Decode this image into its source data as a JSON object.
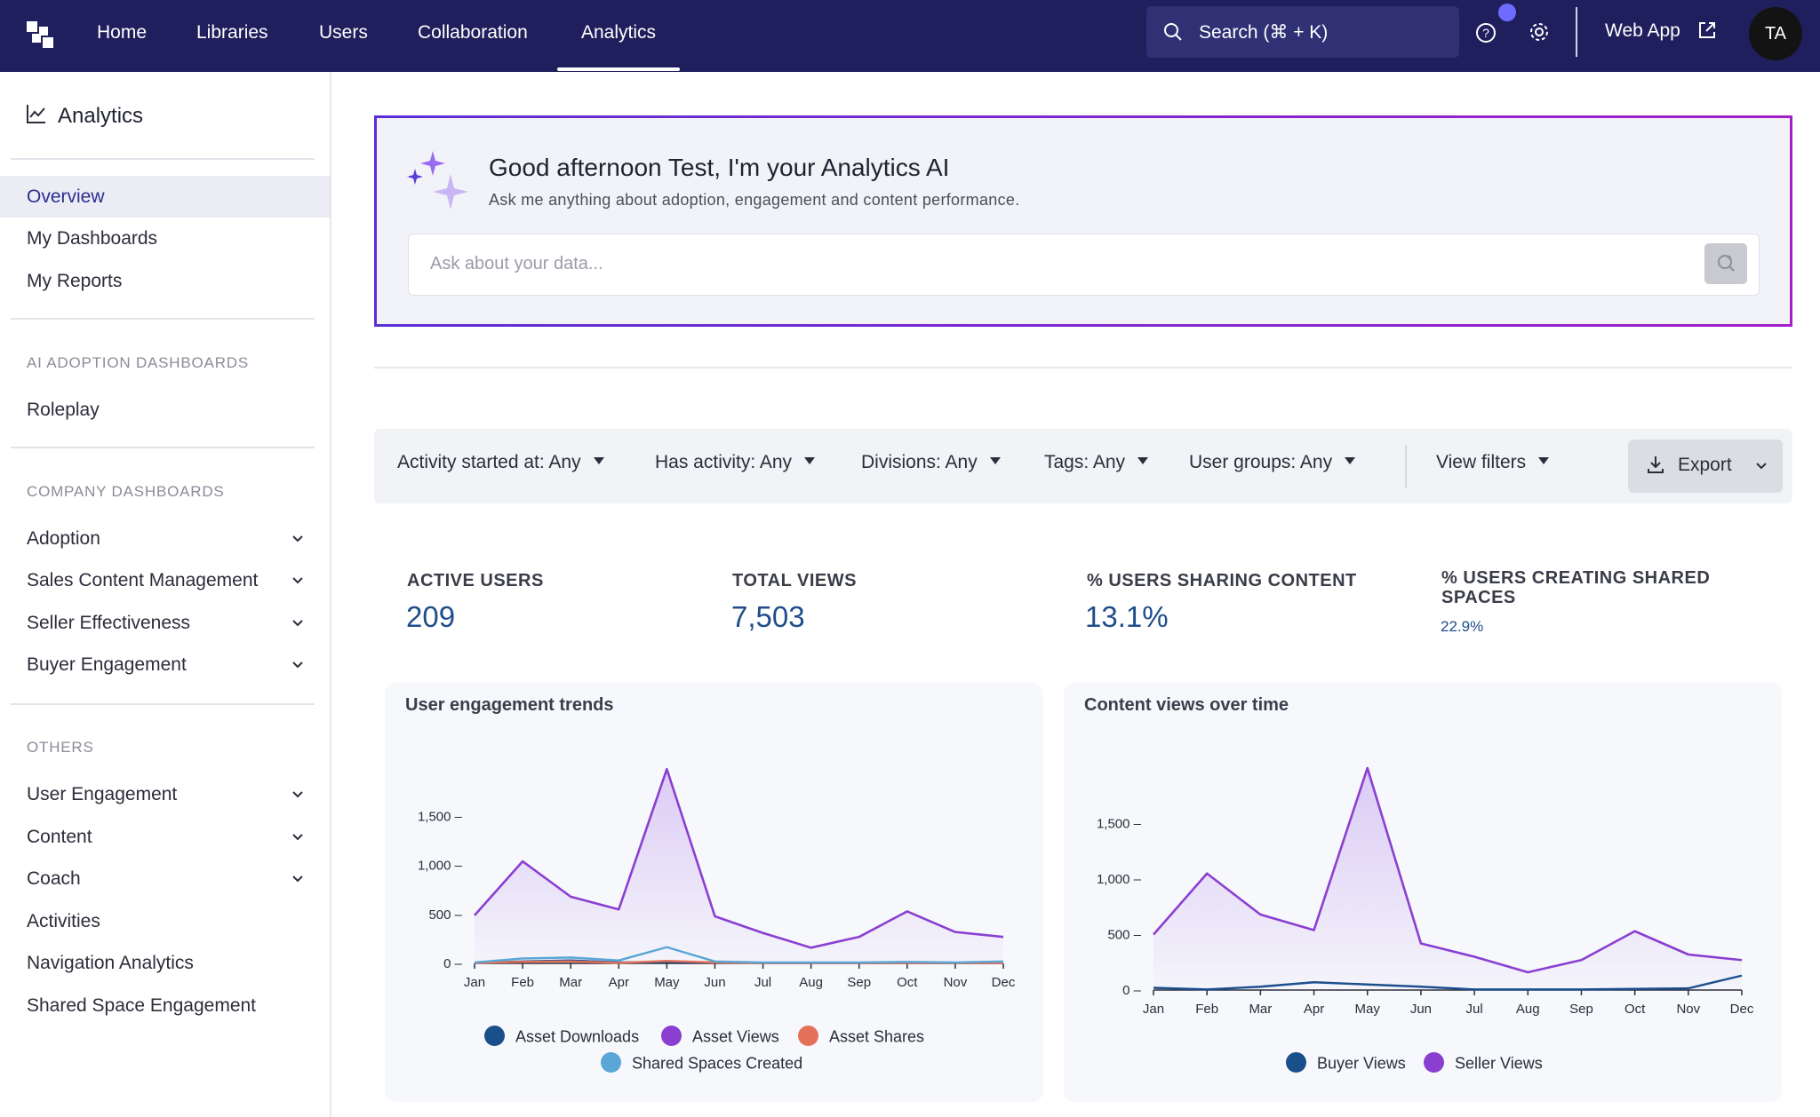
{
  "topnav": {
    "items": [
      "Home",
      "Libraries",
      "Users",
      "Collaboration",
      "Analytics"
    ],
    "active": "Analytics",
    "search_label": "Search (⌘ + K)",
    "web_app_label": "Web App",
    "avatar_initials": "TA"
  },
  "sidebar": {
    "title": "Analytics",
    "main_items": [
      "Overview",
      "My Dashboards",
      "My Reports"
    ],
    "active": "Overview",
    "sections": [
      {
        "heading": "AI ADOPTION DASHBOARDS",
        "items": [
          {
            "label": "Roleplay",
            "expandable": false
          }
        ]
      },
      {
        "heading": "COMPANY DASHBOARDS",
        "items": [
          {
            "label": "Adoption",
            "expandable": true
          },
          {
            "label": "Sales Content Management",
            "expandable": true
          },
          {
            "label": "Seller Effectiveness",
            "expandable": true
          },
          {
            "label": "Buyer Engagement",
            "expandable": true
          }
        ]
      },
      {
        "heading": "OTHERS",
        "items": [
          {
            "label": "User Engagement",
            "expandable": true
          },
          {
            "label": "Content",
            "expandable": true
          },
          {
            "label": "Coach",
            "expandable": true
          },
          {
            "label": "Activities",
            "expandable": false
          },
          {
            "label": "Navigation Analytics",
            "expandable": false
          },
          {
            "label": "Shared Space Engagement",
            "expandable": false
          }
        ]
      }
    ]
  },
  "ai_assistant": {
    "title": "Good afternoon Test, I'm your Analytics AI",
    "subtitle": "Ask me anything about adoption, engagement and content performance.",
    "input_placeholder": "Ask about your data..."
  },
  "filters": {
    "items": [
      "Activity started at: Any",
      "Has activity: Any",
      "Divisions: Any",
      "Tags: Any",
      "User groups: Any"
    ],
    "view_filters_label": "View filters",
    "export_label": "Export"
  },
  "kpis": [
    {
      "label": "ACTIVE USERS",
      "value": "209"
    },
    {
      "label": "TOTAL VIEWS",
      "value": "7,503"
    },
    {
      "label": "% USERS SHARING CONTENT",
      "value": "13.1%"
    },
    {
      "label": "% USERS CREATING SHARED SPACES",
      "value": "22.9%"
    }
  ],
  "colors": {
    "nav_bg": "#1e1f5c",
    "accent": "#2a2f8f",
    "purple": "#8a3fd1",
    "navy": "#1b4f8c",
    "orange": "#e4715a",
    "light_blue": "#5aa6d6"
  },
  "chart_data": [
    {
      "type": "area",
      "title": "User engagement trends",
      "x": [
        "Jan",
        "Feb",
        "Mar",
        "Apr",
        "May",
        "Jun",
        "Jul",
        "Aug",
        "Sep",
        "Oct",
        "Nov",
        "Dec"
      ],
      "yticks": [
        "0",
        "500",
        "1,000",
        "1,500"
      ],
      "ylim": [
        0,
        2000
      ],
      "series": [
        {
          "name": "Asset Downloads",
          "color": "#1b4f8c",
          "values": [
            5,
            20,
            30,
            10,
            15,
            10,
            5,
            5,
            5,
            5,
            5,
            5
          ]
        },
        {
          "name": "Asset Views",
          "color": "#8a3fd1",
          "values": [
            490,
            1040,
            680,
            550,
            1980,
            480,
            310,
            160,
            270,
            530,
            320,
            270
          ]
        },
        {
          "name": "Asset Shares",
          "color": "#e4715a",
          "values": [
            5,
            15,
            20,
            5,
            25,
            10,
            5,
            5,
            5,
            5,
            5,
            5
          ]
        },
        {
          "name": "Shared Spaces Created",
          "color": "#5aa6d6",
          "values": [
            10,
            50,
            60,
            30,
            165,
            20,
            10,
            10,
            10,
            15,
            10,
            20
          ]
        }
      ]
    },
    {
      "type": "area",
      "title": "Content views over time",
      "x": [
        "Jan",
        "Feb",
        "Mar",
        "Apr",
        "May",
        "Jun",
        "Jul",
        "Aug",
        "Sep",
        "Oct",
        "Nov",
        "Dec"
      ],
      "yticks": [
        "0",
        "500",
        "1,000",
        "1,500"
      ],
      "ylim": [
        0,
        2000
      ],
      "series": [
        {
          "name": "Buyer Views",
          "color": "#1b4f8c",
          "values": [
            20,
            5,
            30,
            70,
            50,
            30,
            5,
            5,
            5,
            10,
            15,
            130
          ]
        },
        {
          "name": "Seller Views",
          "color": "#8a3fd1",
          "values": [
            500,
            1050,
            680,
            540,
            2000,
            420,
            300,
            160,
            270,
            530,
            320,
            270
          ]
        }
      ]
    }
  ]
}
